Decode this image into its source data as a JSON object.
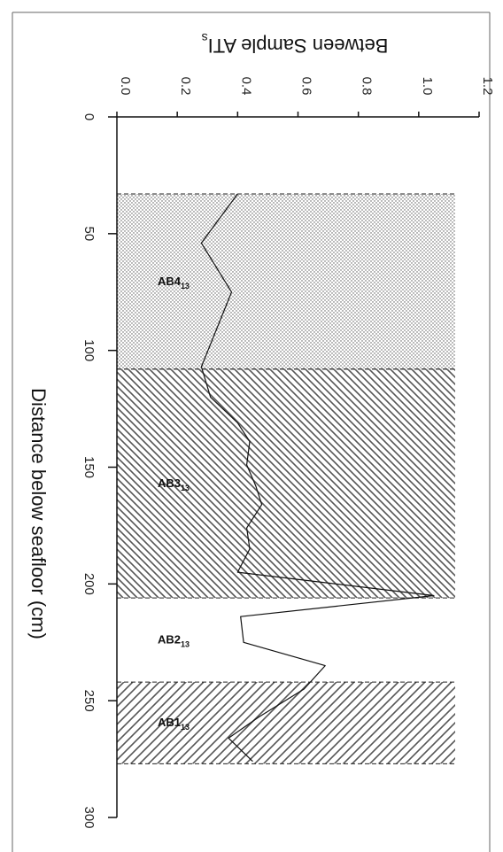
{
  "chart_data": {
    "type": "line",
    "orientation": "rotated-90-cw",
    "title": "",
    "xlabel": "Distance below seafloor (cm)",
    "ylabel": {
      "main": "Between Sample ATI",
      "subscript": "s"
    },
    "xlim": [
      0,
      300
    ],
    "ylim": [
      0,
      1.2
    ],
    "x_ticks": [
      0,
      50,
      100,
      150,
      200,
      250,
      300
    ],
    "y_ticks": [
      "0.0",
      "0.2",
      "0.4",
      "0.6",
      "0.8",
      "1.0",
      "1.2"
    ],
    "grid": false,
    "legend": "none",
    "series": [
      {
        "x": [
          33,
          54,
          75,
          107,
          120,
          131,
          139,
          149,
          158,
          166,
          176,
          185,
          195,
          205,
          214,
          225,
          235,
          245,
          257,
          266,
          276
        ],
        "y": [
          0.4,
          0.28,
          0.38,
          0.28,
          0.31,
          0.4,
          0.44,
          0.43,
          0.46,
          0.48,
          0.43,
          0.44,
          0.4,
          1.05,
          0.41,
          0.42,
          0.69,
          0.62,
          0.47,
          0.37,
          0.45
        ]
      }
    ],
    "zones": [
      {
        "label": "AB4",
        "sub": "13",
        "start": 33,
        "end": 108,
        "pattern": "dots"
      },
      {
        "label": "AB3",
        "sub": "13",
        "start": 108,
        "end": 206,
        "pattern": "hatch-dense"
      },
      {
        "label": "AB2",
        "sub": "13",
        "start": 206,
        "end": 242,
        "pattern": "none"
      },
      {
        "label": "AB1",
        "sub": "13",
        "start": 242,
        "end": 277,
        "pattern": "hatch-sparse"
      }
    ],
    "colors": {
      "line": "#111111",
      "pattern": "#555555",
      "frame": "#666666"
    }
  }
}
